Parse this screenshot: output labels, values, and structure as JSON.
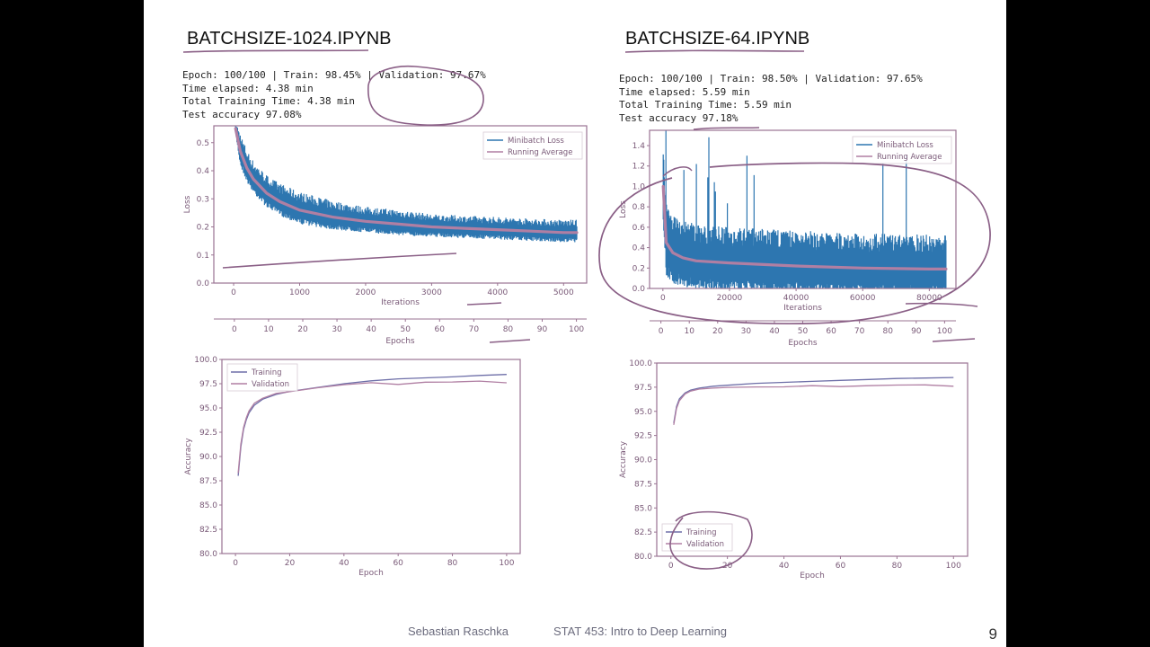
{
  "notebooks": {
    "left": {
      "title": "BATCHSIZE-1024.IPYNB",
      "log": [
        "Epoch: 100/100 | Train: 98.45% | Validation: 97.67%",
        "Time elapsed: 4.38 min",
        "Total Training Time: 4.38 min",
        "Test accuracy 97.08%"
      ]
    },
    "right": {
      "title": "BATCHSIZE-64.IPYNB",
      "log": [
        "Epoch: 100/100 | Train: 98.50% | Validation: 97.65%",
        "Time elapsed: 5.59 min",
        "Total Training Time: 5.59 min",
        "Test accuracy 97.18%"
      ]
    }
  },
  "footer": {
    "author": "Sebastian Raschka",
    "course": "STAT 453: Intro to Deep Learning",
    "page": "9"
  },
  "colors": {
    "minibatch": "#2d76b0",
    "running_avg": "#b07fa3",
    "frame": "#9a7392",
    "tick_text": "#7a5a78",
    "annotation": "#8a5f86",
    "slide_bg": "#ffffff",
    "outer_bg": "#000000"
  },
  "chart_data": [
    {
      "id": "loss-1024",
      "type": "line",
      "xlabel": "Iterations",
      "ylabel": "Loss",
      "xlim": [
        -300,
        5350
      ],
      "ylim": [
        0,
        0.56
      ],
      "xticks": [
        0,
        1000,
        2000,
        3000,
        4000,
        5000
      ],
      "xtick_labels": [
        "0",
        "1000",
        "2000",
        "3000",
        "4000",
        "5000"
      ],
      "yticks": [
        0.0,
        0.1,
        0.2,
        0.3,
        0.4,
        0.5
      ],
      "ytick_labels": [
        "0.0",
        "0.1",
        "0.2",
        "0.3",
        "0.4",
        "0.5"
      ],
      "legend": "top-right",
      "secondary_axis": {
        "label": "Epochs",
        "xlim": [
          -6,
          103
        ],
        "ticks": [
          0,
          10,
          20,
          30,
          40,
          50,
          60,
          70,
          80,
          90,
          100
        ],
        "tick_labels": [
          "0",
          "10",
          "20",
          "30",
          "40",
          "50",
          "60",
          "70",
          "80",
          "90",
          "100"
        ]
      },
      "series": [
        {
          "name": "Minibatch Loss",
          "x": [
            30,
            100,
            200,
            300,
            500,
            700,
            1000,
            1500,
            2000,
            2500,
            3000,
            3500,
            4000,
            4500,
            5000,
            5200
          ],
          "y": [
            0.55,
            0.47,
            0.41,
            0.37,
            0.32,
            0.29,
            0.26,
            0.235,
            0.22,
            0.21,
            0.2,
            0.195,
            0.19,
            0.185,
            0.18,
            0.18
          ],
          "spread": [
            0.02,
            0.05,
            0.05,
            0.05,
            0.05,
            0.05,
            0.05,
            0.045,
            0.04,
            0.04,
            0.035,
            0.035,
            0.035,
            0.035,
            0.035,
            0.035
          ]
        },
        {
          "name": "Running Average",
          "x": [
            30,
            100,
            200,
            300,
            500,
            700,
            1000,
            1500,
            2000,
            2500,
            3000,
            3500,
            4000,
            4500,
            5000,
            5200
          ],
          "y": [
            0.55,
            0.47,
            0.41,
            0.37,
            0.32,
            0.29,
            0.26,
            0.235,
            0.22,
            0.21,
            0.2,
            0.195,
            0.19,
            0.185,
            0.18,
            0.18
          ]
        }
      ]
    },
    {
      "id": "loss-64",
      "type": "line",
      "xlabel": "Iterations",
      "ylabel": "Loss",
      "xlim": [
        -4000,
        88000
      ],
      "ylim": [
        0,
        1.55
      ],
      "xticks": [
        0,
        20000,
        40000,
        60000,
        80000
      ],
      "xtick_labels": [
        "0",
        "20000",
        "40000",
        "60000",
        "80000"
      ],
      "yticks": [
        0.0,
        0.2,
        0.4,
        0.6,
        0.8,
        1.0,
        1.2,
        1.4
      ],
      "ytick_labels": [
        "0.0",
        "0.2",
        "0.4",
        "0.6",
        "0.8",
        "1.0",
        "1.2",
        "1.4"
      ],
      "legend": "top-right",
      "secondary_axis": {
        "label": "Epochs",
        "xlim": [
          -4,
          104
        ],
        "ticks": [
          0,
          10,
          20,
          30,
          40,
          50,
          60,
          70,
          80,
          90,
          100
        ],
        "tick_labels": [
          "0",
          "10",
          "20",
          "30",
          "40",
          "50",
          "60",
          "70",
          "80",
          "90",
          "100"
        ]
      },
      "series": [
        {
          "name": "Minibatch Loss",
          "x": [
            100,
            1000,
            3000,
            6000,
            10000,
            20000,
            40000,
            60000,
            80000,
            85000
          ],
          "y": [
            1.0,
            0.45,
            0.35,
            0.3,
            0.27,
            0.25,
            0.22,
            0.2,
            0.19,
            0.19
          ],
          "spread": [
            0.35,
            0.33,
            0.3,
            0.28,
            0.28,
            0.27,
            0.27,
            0.26,
            0.26,
            0.26
          ]
        },
        {
          "name": "Running Average",
          "x": [
            100,
            1000,
            3000,
            6000,
            10000,
            20000,
            40000,
            60000,
            80000,
            85000
          ],
          "y": [
            1.0,
            0.45,
            0.35,
            0.3,
            0.27,
            0.25,
            0.22,
            0.2,
            0.19,
            0.19
          ]
        }
      ]
    },
    {
      "id": "acc-1024",
      "type": "line",
      "xlabel": "Epoch",
      "ylabel": "Accuracy",
      "xlim": [
        -5,
        105
      ],
      "ylim": [
        80,
        100
      ],
      "xticks": [
        0,
        20,
        40,
        60,
        80,
        100
      ],
      "xtick_labels": [
        "0",
        "20",
        "40",
        "60",
        "80",
        "100"
      ],
      "yticks": [
        80,
        82.5,
        85,
        87.5,
        90,
        92.5,
        95,
        97.5,
        100
      ],
      "ytick_labels": [
        "80.0",
        "82.5",
        "85.0",
        "87.5",
        "90.0",
        "92.5",
        "95.0",
        "97.5",
        "100.0"
      ],
      "legend": "top-left",
      "series": [
        {
          "name": "Training",
          "x": [
            1,
            2,
            3,
            4,
            5,
            7,
            10,
            15,
            20,
            30,
            40,
            50,
            60,
            70,
            80,
            90,
            100
          ],
          "y": [
            88.0,
            91.0,
            92.8,
            93.8,
            94.5,
            95.3,
            95.9,
            96.4,
            96.7,
            97.1,
            97.5,
            97.8,
            98.0,
            98.1,
            98.2,
            98.35,
            98.45
          ]
        },
        {
          "name": "Validation",
          "x": [
            1,
            2,
            3,
            4,
            5,
            7,
            10,
            15,
            20,
            30,
            40,
            50,
            60,
            70,
            80,
            90,
            100
          ],
          "y": [
            88.3,
            91.3,
            93.0,
            94.0,
            94.7,
            95.5,
            96.0,
            96.5,
            96.8,
            97.1,
            97.4,
            97.5,
            97.55,
            97.6,
            97.6,
            97.65,
            97.67
          ]
        }
      ]
    },
    {
      "id": "acc-64",
      "type": "line",
      "xlabel": "Epoch",
      "ylabel": "Accuracy",
      "xlim": [
        -5,
        105
      ],
      "ylim": [
        80,
        100
      ],
      "xticks": [
        0,
        20,
        40,
        60,
        80,
        100
      ],
      "xtick_labels": [
        "0",
        "20",
        "40",
        "60",
        "80",
        "100"
      ],
      "yticks": [
        80,
        82.5,
        85,
        87.5,
        90,
        92.5,
        95,
        97.5,
        100
      ],
      "ytick_labels": [
        "80.0",
        "82.5",
        "85.0",
        "87.5",
        "90.0",
        "92.5",
        "95.0",
        "97.5",
        "100.0"
      ],
      "legend": "bottom-left",
      "series": [
        {
          "name": "Training",
          "x": [
            1,
            2,
            3,
            5,
            7,
            10,
            15,
            20,
            30,
            40,
            50,
            60,
            70,
            80,
            90,
            100
          ],
          "y": [
            93.8,
            95.5,
            96.3,
            96.9,
            97.2,
            97.4,
            97.6,
            97.7,
            97.9,
            98.0,
            98.1,
            98.2,
            98.3,
            98.4,
            98.45,
            98.5
          ]
        },
        {
          "name": "Validation",
          "x": [
            1,
            2,
            3,
            5,
            7,
            10,
            15,
            20,
            30,
            40,
            50,
            60,
            70,
            80,
            90,
            100
          ],
          "y": [
            93.6,
            95.3,
            96.1,
            96.8,
            97.1,
            97.3,
            97.4,
            97.5,
            97.6,
            97.6,
            97.62,
            97.62,
            97.63,
            97.64,
            97.65,
            97.65
          ]
        }
      ]
    }
  ]
}
